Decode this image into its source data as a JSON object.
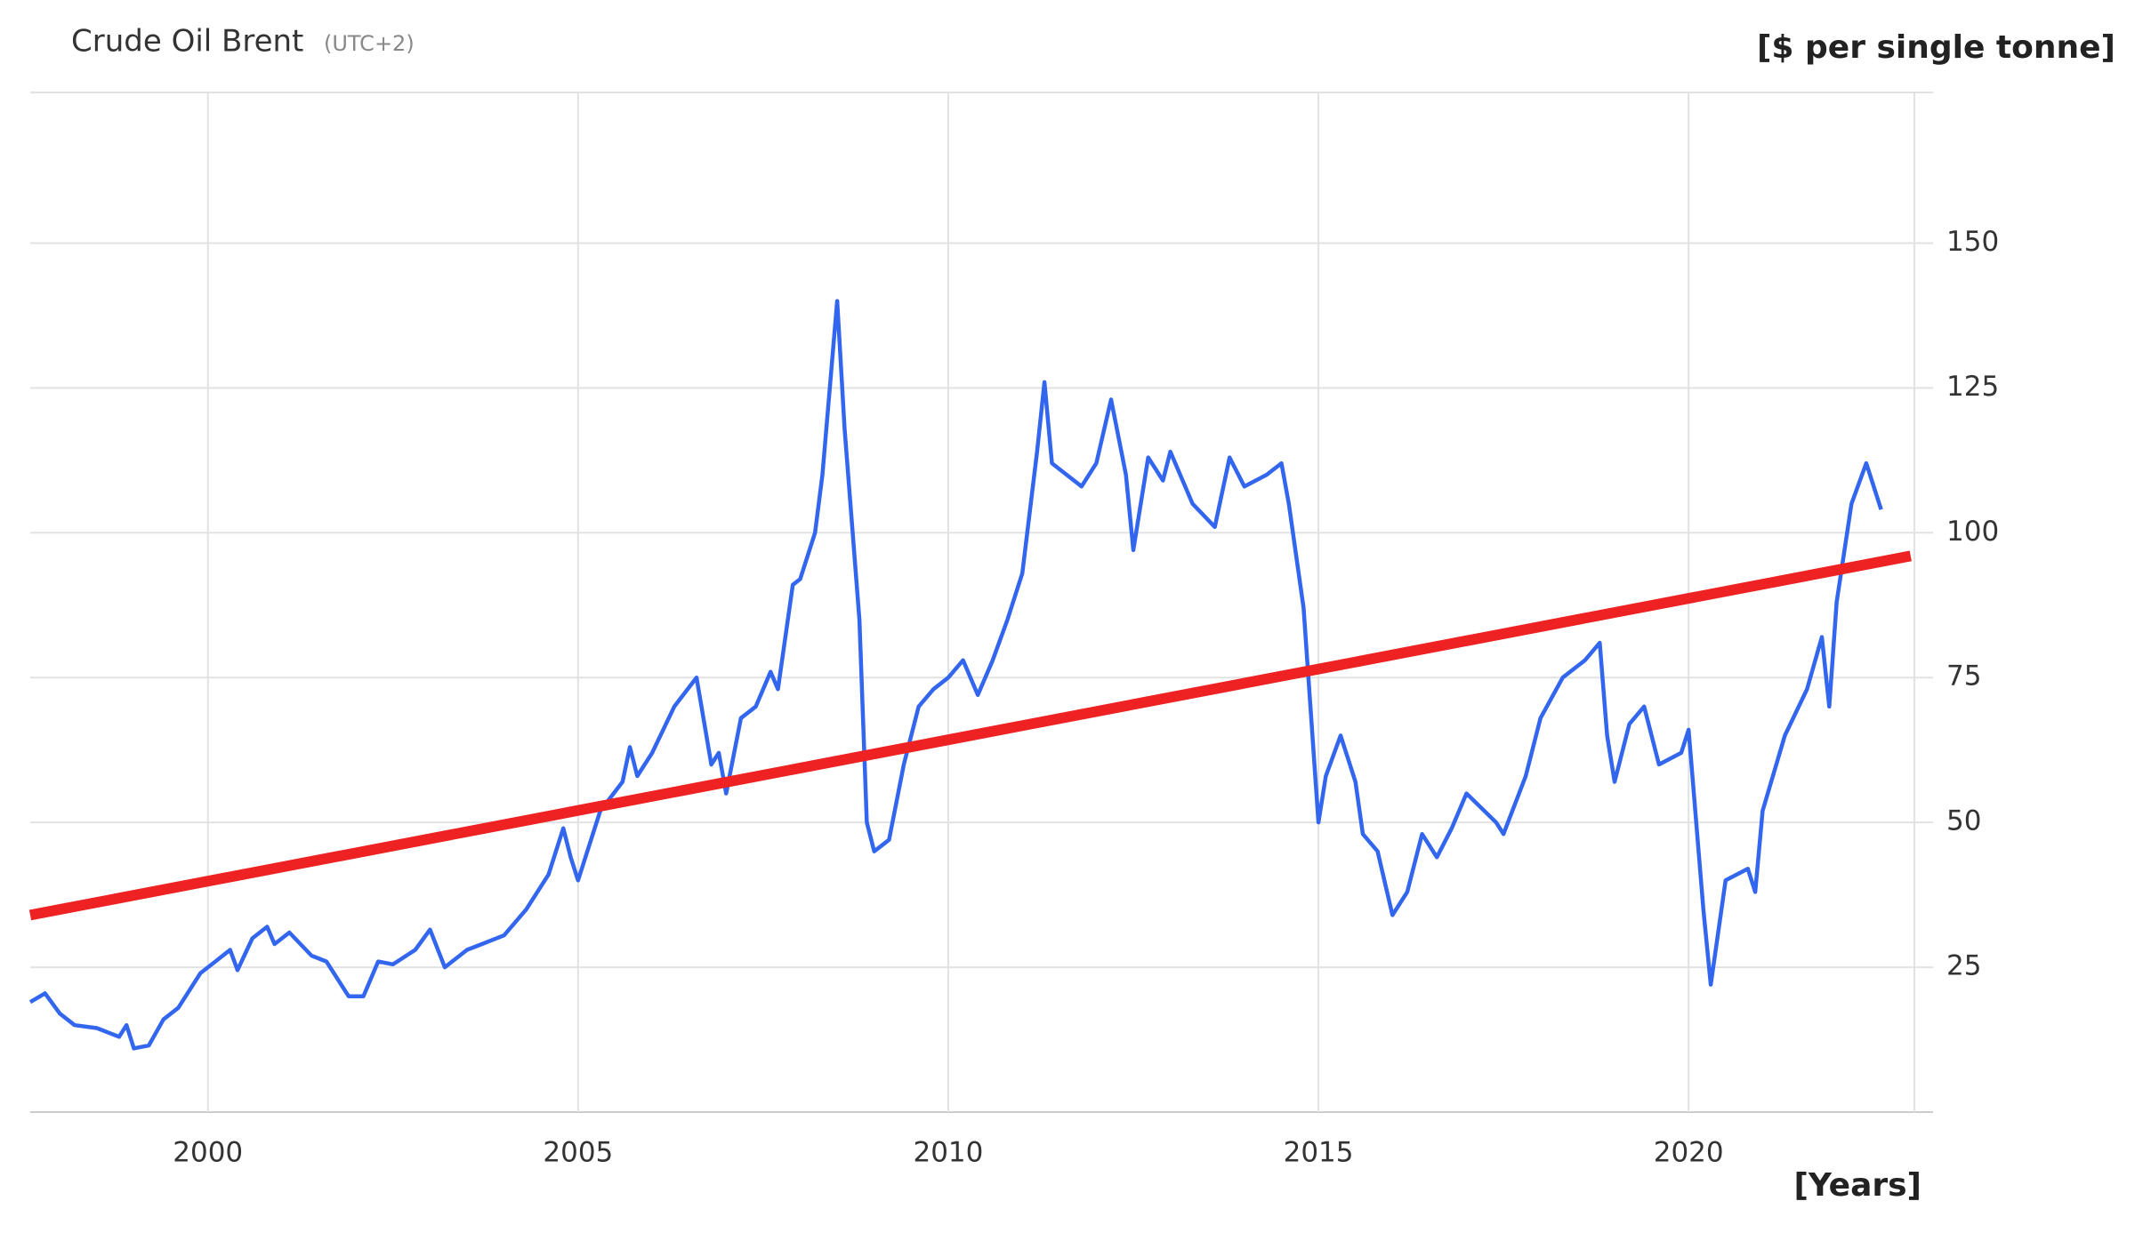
{
  "chart_data": {
    "type": "line",
    "title": "Crude Oil Brent",
    "subtitle": "(UTC+2)",
    "y_label": "[$ per single tonne]",
    "x_label": "[Years]",
    "grid": true,
    "xlim": [
      1997.6,
      2023.05
    ],
    "ylim": [
      0,
      176
    ],
    "xticks": [
      2000,
      2005,
      2010,
      2015,
      2020
    ],
    "yticks": [
      25,
      50,
      75,
      100,
      125,
      150
    ],
    "series": [
      {
        "color": "#3366ee",
        "x": [
          1997.6,
          1997.8,
          1998.0,
          1998.2,
          1998.5,
          1998.8,
          1998.9,
          1999.0,
          1999.2,
          1999.4,
          1999.6,
          1999.9,
          2000.1,
          2000.3,
          2000.4,
          2000.6,
          2000.8,
          2000.9,
          2001.1,
          2001.4,
          2001.6,
          2001.9,
          2002.1,
          2002.3,
          2002.5,
          2002.8,
          2003.0,
          2003.2,
          2003.5,
          2003.7,
          2004.0,
          2004.3,
          2004.6,
          2004.8,
          2004.9,
          2005.0,
          2005.3,
          2005.6,
          2005.7,
          2005.8,
          2006.0,
          2006.3,
          2006.6,
          2006.8,
          2006.9,
          2007.0,
          2007.2,
          2007.4,
          2007.6,
          2007.7,
          2007.9,
          2008.0,
          2008.2,
          2008.3,
          2008.5,
          2008.6,
          2008.8,
          2008.9,
          2009.0,
          2009.2,
          2009.4,
          2009.6,
          2009.8,
          2010.0,
          2010.2,
          2010.4,
          2010.6,
          2010.8,
          2011.0,
          2011.2,
          2011.3,
          2011.4,
          2011.6,
          2011.8,
          2012.0,
          2012.2,
          2012.4,
          2012.5,
          2012.7,
          2012.9,
          2013.0,
          2013.3,
          2013.6,
          2013.8,
          2014.0,
          2014.3,
          2014.5,
          2014.6,
          2014.8,
          2015.0,
          2015.1,
          2015.3,
          2015.5,
          2015.6,
          2015.8,
          2016.0,
          2016.2,
          2016.4,
          2016.6,
          2016.8,
          2017.0,
          2017.4,
          2017.5,
          2017.8,
          2018.0,
          2018.3,
          2018.6,
          2018.8,
          2018.9,
          2019.0,
          2019.2,
          2019.4,
          2019.6,
          2019.9,
          2020.0,
          2020.2,
          2020.3,
          2020.5,
          2020.8,
          2020.9,
          2021.0,
          2021.3,
          2021.6,
          2021.8,
          2021.9,
          2022.0,
          2022.2,
          2022.4,
          2022.6
        ],
        "values": [
          19,
          20.5,
          17,
          15,
          14.5,
          13,
          15,
          11,
          11.5,
          16,
          18,
          24,
          26,
          28,
          24.5,
          30,
          32,
          29,
          31,
          27,
          26,
          20,
          20,
          26,
          25.5,
          28,
          31.5,
          25,
          28,
          29,
          30.5,
          35,
          41,
          49,
          44,
          40,
          52,
          57,
          63,
          58,
          62,
          70,
          75,
          60,
          62,
          55,
          68,
          70,
          76,
          73,
          91,
          92,
          100,
          110,
          140,
          118,
          85,
          50,
          45,
          47,
          60,
          70,
          73,
          75,
          78,
          72,
          78,
          85,
          93,
          114,
          126,
          112,
          110,
          108,
          112,
          123,
          110,
          97,
          113,
          109,
          114,
          105,
          101,
          113,
          108,
          110,
          112,
          105,
          87,
          50,
          58,
          65,
          57,
          48,
          45,
          34,
          38,
          48,
          44,
          49,
          55,
          50,
          48,
          58,
          68,
          75,
          78,
          81,
          65,
          57,
          67,
          70,
          60,
          62,
          66,
          35,
          22,
          40,
          42,
          38,
          52,
          65,
          73,
          82,
          70,
          88,
          105,
          112,
          104
        ]
      },
      {
        "color": "#ee2222",
        "x": [
          1997.6,
          2023.0
        ],
        "values": [
          34,
          96
        ]
      }
    ]
  }
}
